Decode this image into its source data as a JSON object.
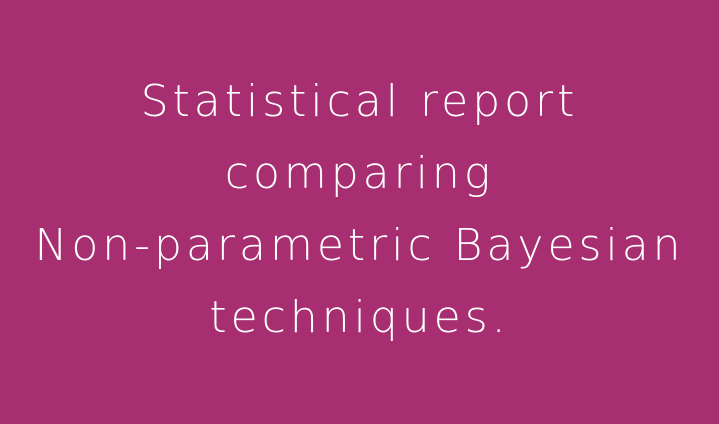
{
  "background_color": "#a72e70",
  "text_color": "#ffffff",
  "title": {
    "lines": [
      "Statistical report",
      "comparing",
      "Non-parametric Bayesian",
      "techniques."
    ]
  }
}
